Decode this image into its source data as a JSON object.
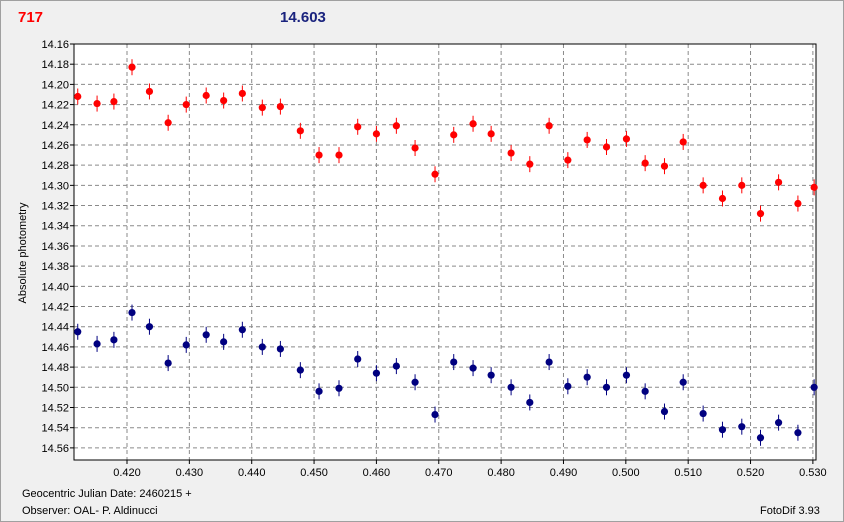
{
  "header": {
    "left_value": "717",
    "right_value": "14.603"
  },
  "footer": {
    "julian_date": "Geocentric Julian Date: 2460215 +",
    "observer": "Observer: OAL- P. Aldinucci",
    "version": "FotoDif 3.93"
  },
  "colors": {
    "upper_series": "#ff0000",
    "lower_series": "#000080",
    "grid": "#8a8a8a"
  },
  "chart_data": {
    "type": "scatter",
    "ylabel": "Absolute photometry",
    "xlabel": "",
    "xlim": [
      0.4115,
      0.5305
    ],
    "ylim": [
      14.16,
      14.572
    ],
    "y_inverted": true,
    "grid": true,
    "x_ticks": [
      "0.420",
      "0.430",
      "0.440",
      "0.450",
      "0.460",
      "0.470",
      "0.480",
      "0.490",
      "0.500",
      "0.510",
      "0.520",
      "0.530"
    ],
    "y_ticks": [
      "14.16",
      "14.18",
      "14.20",
      "14.22",
      "14.24",
      "14.26",
      "14.28",
      "14.30",
      "14.32",
      "14.34",
      "14.36",
      "14.38",
      "14.40",
      "14.42",
      "14.44",
      "14.46",
      "14.48",
      "14.50",
      "14.52",
      "14.54",
      "14.56"
    ],
    "x": [
      0.4121,
      0.4152,
      0.4179,
      0.4208,
      0.4236,
      0.4266,
      0.4295,
      0.4327,
      0.4355,
      0.4385,
      0.4417,
      0.4446,
      0.4478,
      0.4508,
      0.454,
      0.457,
      0.46,
      0.4632,
      0.4662,
      0.4694,
      0.4724,
      0.4755,
      0.4784,
      0.4816,
      0.4846,
      0.4877,
      0.4907,
      0.4938,
      0.4969,
      0.5001,
      0.5031,
      0.5062,
      0.5092,
      0.5124,
      0.5155,
      0.5186,
      0.5216,
      0.5245,
      0.5276,
      0.5302
    ],
    "series": [
      {
        "values": [
          14.212,
          14.219,
          14.217,
          14.183,
          14.207,
          14.238,
          14.22,
          14.211,
          14.216,
          14.209,
          14.223,
          14.222,
          14.246,
          14.27,
          14.27,
          14.242,
          14.249,
          14.241,
          14.263,
          14.289,
          14.25,
          14.239,
          14.249,
          14.268,
          14.279,
          14.241,
          14.275,
          14.255,
          14.262,
          14.254,
          14.278,
          14.281,
          14.257,
          14.3,
          14.313,
          14.3,
          14.328,
          14.297,
          14.318,
          14.302
        ]
      },
      {
        "values": [
          14.445,
          14.457,
          14.453,
          14.426,
          14.44,
          14.476,
          14.458,
          14.448,
          14.455,
          14.443,
          14.46,
          14.462,
          14.483,
          14.504,
          14.501,
          14.472,
          14.486,
          14.479,
          14.495,
          14.527,
          14.475,
          14.481,
          14.488,
          14.5,
          14.515,
          14.475,
          14.499,
          14.49,
          14.5,
          14.488,
          14.504,
          14.524,
          14.495,
          14.526,
          14.542,
          14.539,
          14.55,
          14.535,
          14.545,
          14.5
        ]
      }
    ]
  }
}
